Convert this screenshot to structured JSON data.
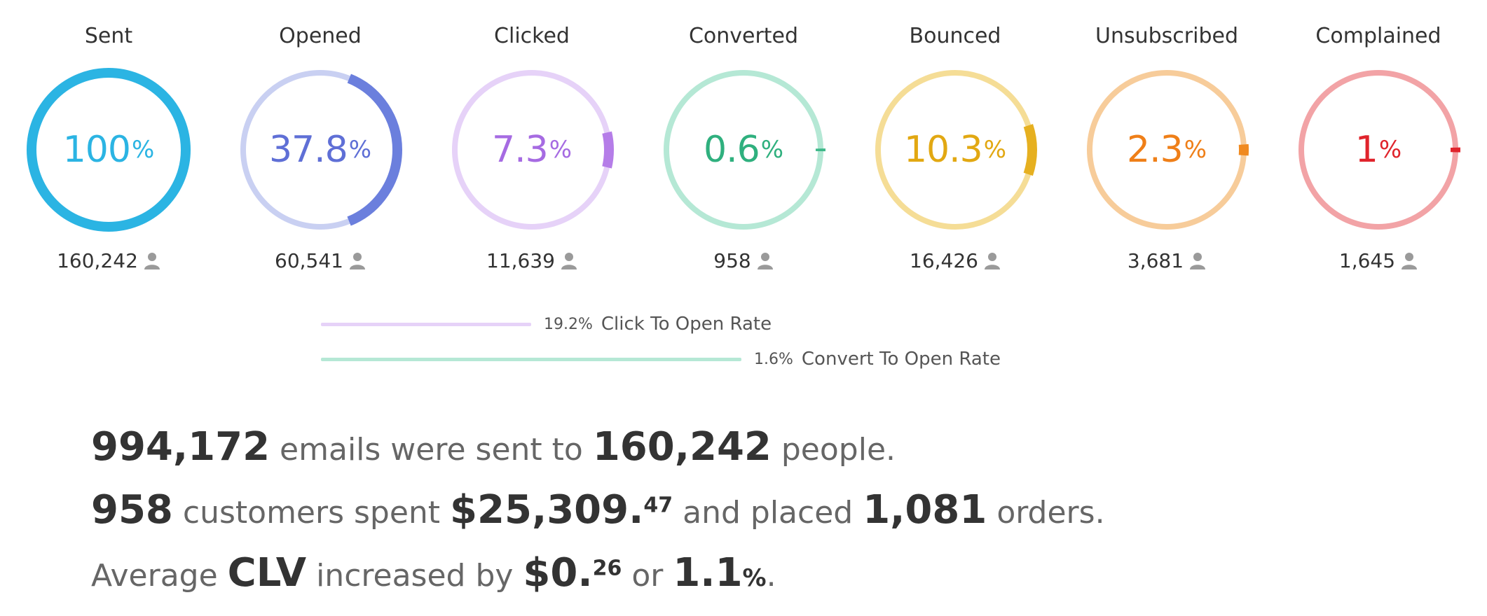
{
  "metrics": [
    {
      "id": "sent",
      "title": "Sent",
      "value": "100",
      "pct": "%",
      "count": "160,242",
      "fraction": 1.0,
      "color": "#2bb4e3",
      "track": "#2bb4e3",
      "text": "#2bb4e3"
    },
    {
      "id": "opened",
      "title": "Opened",
      "value": "37.8",
      "pct": "%",
      "count": "60,541",
      "fraction": 0.378,
      "color": "#6b7fdd",
      "track": "#c9d0f2",
      "text": "#5f6fd6"
    },
    {
      "id": "clicked",
      "title": "Clicked",
      "value": "7.3",
      "pct": "%",
      "count": "11,639",
      "fraction": 0.073,
      "color": "#b57de8",
      "track": "#e6d2f8",
      "text": "#a66be2"
    },
    {
      "id": "converted",
      "title": "Converted",
      "value": "0.6",
      "pct": "%",
      "count": "958",
      "fraction": 0.006,
      "color": "#3eb889",
      "track": "#b5e8d5",
      "text": "#2fb07e"
    },
    {
      "id": "bounced",
      "title": "Bounced",
      "value": "10.3",
      "pct": "%",
      "count": "16,426",
      "fraction": 0.103,
      "color": "#e6b020",
      "track": "#f5dd96",
      "text": "#e2a812"
    },
    {
      "id": "unsubscribed",
      "title": "Unsubscribed",
      "value": "2.3",
      "pct": "%",
      "count": "3,681",
      "fraction": 0.023,
      "color": "#f08a20",
      "track": "#f7cc9a",
      "text": "#ef7f18"
    },
    {
      "id": "complained",
      "title": "Complained",
      "value": "1",
      "pct": "%",
      "count": "1,645",
      "fraction": 0.01,
      "color": "#e0242c",
      "track": "#f2a3a6",
      "text": "#e0242c"
    }
  ],
  "rates": [
    {
      "pct": "19.2%",
      "label": "Click To Open Rate",
      "fraction": 0.192,
      "color": "#e6d2f8"
    },
    {
      "pct": "1.6%",
      "label": "Convert To Open Rate",
      "fraction": 0.016,
      "color": "#b5e8d5"
    }
  ],
  "summary": {
    "line1": {
      "a": "994,172",
      "t1": " emails were sent to ",
      "b": "160,242",
      "t2": " people."
    },
    "line2": {
      "a": "958",
      "t1": " customers spent ",
      "money_main": "$25,309.",
      "money_cents": "47",
      "t2": " and placed ",
      "b": "1,081",
      "t3": " orders."
    },
    "line3": {
      "t1": "Average ",
      "a": "CLV",
      "t2": " increased by ",
      "money_main": "$0.",
      "money_cents": "26",
      "t3": " or ",
      "b": "1.1",
      "pct": "%",
      "t4": "."
    }
  }
}
